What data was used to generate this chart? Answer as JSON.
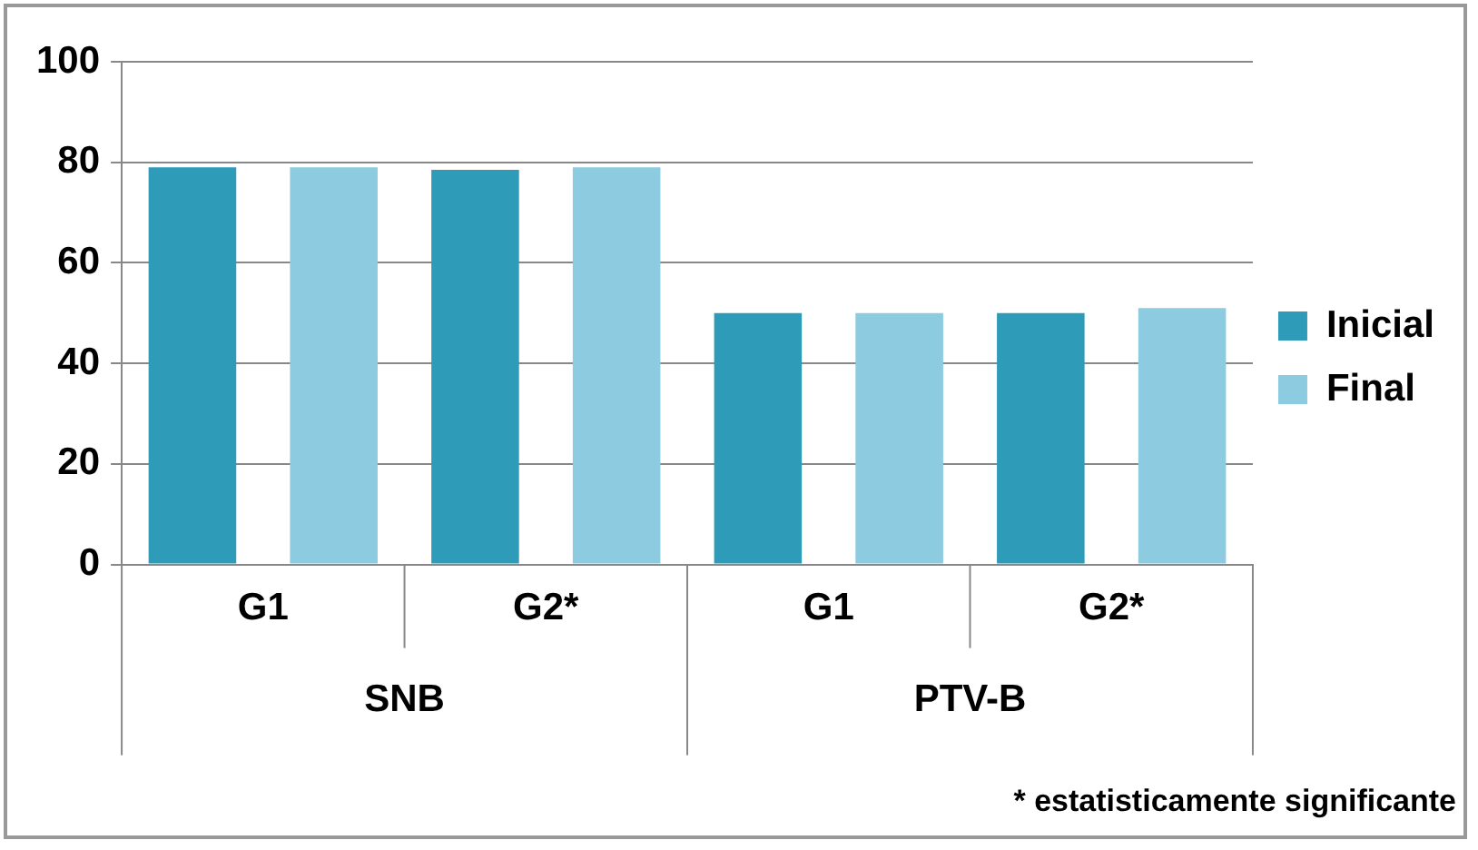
{
  "chart_data": {
    "type": "bar",
    "categories": [
      "G1",
      "G2*",
      "G1",
      "G2*"
    ],
    "series": [
      {
        "name": "Inicial",
        "color": "#2e9bb8",
        "values": [
          79,
          78.5,
          50,
          50
        ]
      },
      {
        "name": "Final",
        "color": "#8ccbe0",
        "values": [
          79,
          79,
          50,
          51
        ]
      }
    ],
    "ylim": [
      0,
      100
    ],
    "yticks": [
      0,
      20,
      40,
      60,
      80,
      100
    ],
    "grid": "y",
    "legend": "right",
    "annotations": [
      "SNB",
      "PTV-B",
      "* estatisticamente significante"
    ]
  }
}
